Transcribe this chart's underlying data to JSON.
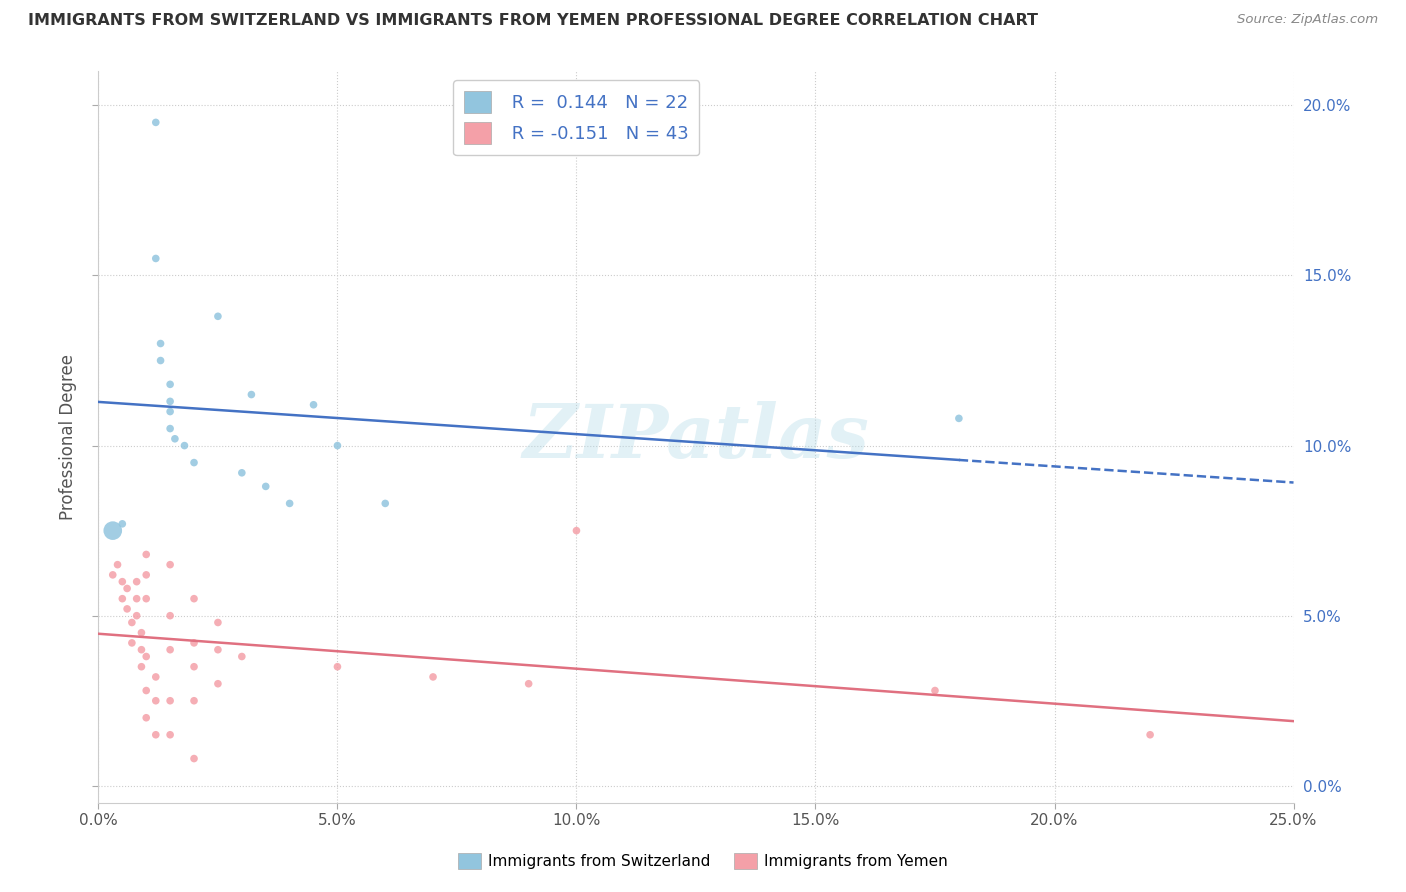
{
  "title": "IMMIGRANTS FROM SWITZERLAND VS IMMIGRANTS FROM YEMEN PROFESSIONAL DEGREE CORRELATION CHART",
  "source": "Source: ZipAtlas.com",
  "ylabel": "Professional Degree",
  "xlabel_switzerland": "Immigrants from Switzerland",
  "xlabel_yemen": "Immigrants from Yemen",
  "xlim": [
    0.0,
    0.25
  ],
  "ylim": [
    -0.005,
    0.21
  ],
  "xticks": [
    0.0,
    0.05,
    0.1,
    0.15,
    0.2,
    0.25
  ],
  "yticks": [
    0.0,
    0.05,
    0.1,
    0.15,
    0.2
  ],
  "R_swiss": 0.144,
  "N_swiss": 22,
  "R_yemen": -0.151,
  "N_yemen": 43,
  "color_swiss": "#92C5DE",
  "color_yemen": "#F4A0A8",
  "trend_color_swiss": "#4472C4",
  "trend_color_yemen": "#E07080",
  "background_color": "#FFFFFF",
  "watermark": "ZIPatlas",
  "swiss_points": [
    [
      0.005,
      0.077
    ],
    [
      0.012,
      0.195
    ],
    [
      0.012,
      0.155
    ],
    [
      0.013,
      0.13
    ],
    [
      0.013,
      0.125
    ],
    [
      0.015,
      0.118
    ],
    [
      0.015,
      0.113
    ],
    [
      0.015,
      0.11
    ],
    [
      0.015,
      0.105
    ],
    [
      0.016,
      0.102
    ],
    [
      0.018,
      0.1
    ],
    [
      0.02,
      0.095
    ],
    [
      0.025,
      0.138
    ],
    [
      0.03,
      0.092
    ],
    [
      0.032,
      0.115
    ],
    [
      0.035,
      0.088
    ],
    [
      0.04,
      0.083
    ],
    [
      0.045,
      0.112
    ],
    [
      0.05,
      0.1
    ],
    [
      0.06,
      0.083
    ],
    [
      0.18,
      0.108
    ],
    [
      0.003,
      0.075
    ]
  ],
  "swiss_sizes": [
    30,
    30,
    30,
    30,
    30,
    30,
    30,
    30,
    30,
    30,
    30,
    30,
    30,
    30,
    30,
    30,
    30,
    30,
    30,
    30,
    30,
    180
  ],
  "yemen_points": [
    [
      0.003,
      0.062
    ],
    [
      0.004,
      0.065
    ],
    [
      0.005,
      0.06
    ],
    [
      0.005,
      0.055
    ],
    [
      0.006,
      0.058
    ],
    [
      0.006,
      0.052
    ],
    [
      0.007,
      0.048
    ],
    [
      0.007,
      0.042
    ],
    [
      0.008,
      0.06
    ],
    [
      0.008,
      0.055
    ],
    [
      0.008,
      0.05
    ],
    [
      0.009,
      0.045
    ],
    [
      0.009,
      0.04
    ],
    [
      0.009,
      0.035
    ],
    [
      0.01,
      0.068
    ],
    [
      0.01,
      0.062
    ],
    [
      0.01,
      0.055
    ],
    [
      0.01,
      0.038
    ],
    [
      0.01,
      0.028
    ],
    [
      0.01,
      0.02
    ],
    [
      0.012,
      0.032
    ],
    [
      0.012,
      0.025
    ],
    [
      0.012,
      0.015
    ],
    [
      0.015,
      0.065
    ],
    [
      0.015,
      0.05
    ],
    [
      0.015,
      0.04
    ],
    [
      0.015,
      0.025
    ],
    [
      0.015,
      0.015
    ],
    [
      0.02,
      0.055
    ],
    [
      0.02,
      0.042
    ],
    [
      0.02,
      0.035
    ],
    [
      0.02,
      0.025
    ],
    [
      0.02,
      0.008
    ],
    [
      0.025,
      0.048
    ],
    [
      0.025,
      0.04
    ],
    [
      0.025,
      0.03
    ],
    [
      0.03,
      0.038
    ],
    [
      0.05,
      0.035
    ],
    [
      0.07,
      0.032
    ],
    [
      0.09,
      0.03
    ],
    [
      0.1,
      0.075
    ],
    [
      0.175,
      0.028
    ],
    [
      0.22,
      0.015
    ]
  ],
  "yemen_sizes": [
    30,
    30,
    30,
    30,
    30,
    30,
    30,
    30,
    30,
    30,
    30,
    30,
    30,
    30,
    30,
    30,
    30,
    30,
    30,
    30,
    30,
    30,
    30,
    30,
    30,
    30,
    30,
    30,
    30,
    30,
    30,
    30,
    30,
    30,
    30,
    30,
    30,
    30,
    30,
    30,
    30,
    30,
    30
  ]
}
